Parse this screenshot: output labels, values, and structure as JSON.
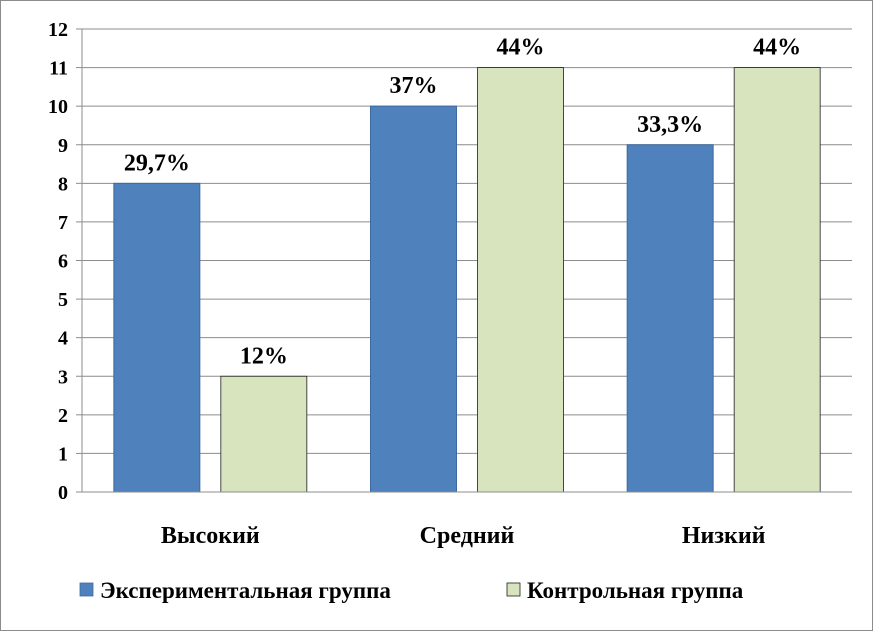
{
  "chart_data": {
    "type": "bar",
    "categories": [
      "Высокий",
      "Средний",
      "Низкий"
    ],
    "series": [
      {
        "name": "Экспериментальная группа",
        "values": [
          8,
          10,
          9
        ],
        "labels": [
          "29,7%",
          "37%",
          "33,3%"
        ],
        "color": "#4f81bd"
      },
      {
        "name": "Контрольная группа",
        "values": [
          3,
          11,
          11
        ],
        "labels": [
          "12%",
          "44%",
          "44%"
        ],
        "color": "#d7e4bd"
      }
    ],
    "ylim": [
      0,
      12
    ],
    "yticks": [
      0,
      1,
      2,
      3,
      4,
      5,
      6,
      7,
      8,
      9,
      10,
      11,
      12
    ],
    "grid": true,
    "legend": "bottom"
  }
}
